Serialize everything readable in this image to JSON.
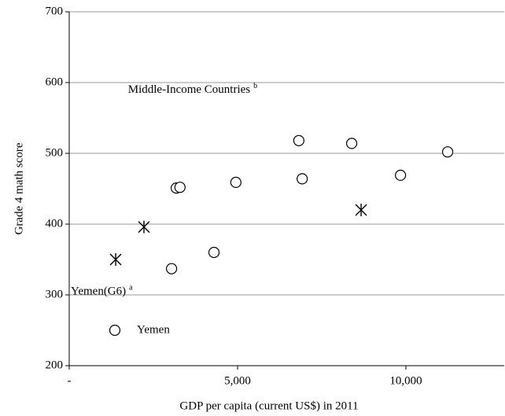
{
  "chart_data": {
    "type": "scatter",
    "x_label": "GDP  per capita (current US$)  in 2011",
    "y_label": "Grade  4  math  score",
    "xlim": [
      0,
      13000
    ],
    "ylim": [
      200,
      700
    ],
    "xticks": [
      {
        "value": 0,
        "label": "-"
      },
      {
        "value": 5000,
        "label": "5,000"
      },
      {
        "value": 10000,
        "label": "10,000"
      }
    ],
    "yticks": [
      200,
      300,
      400,
      500,
      600,
      700
    ],
    "grid": true,
    "series": [
      {
        "name": "Yemen",
        "marker": "circle",
        "color": "#000000",
        "x": [
          3040,
          3180,
          3290,
          4300,
          4950,
          6820,
          6920,
          8390,
          9840,
          11240
        ],
        "values": [
          337,
          451,
          452,
          360,
          459,
          518,
          464,
          514,
          469,
          502
        ]
      },
      {
        "marker": "star",
        "color": "#000000",
        "x": [
          1380,
          2220,
          8670
        ],
        "values": [
          350,
          396,
          420
        ]
      }
    ],
    "annotations": [
      {
        "text": "Middle-Income Countries",
        "sup": "b",
        "x": 1700,
        "y": 600
      },
      {
        "text": "Yemen(G6)",
        "sup": "a",
        "x": 0,
        "y": 315
      }
    ]
  }
}
